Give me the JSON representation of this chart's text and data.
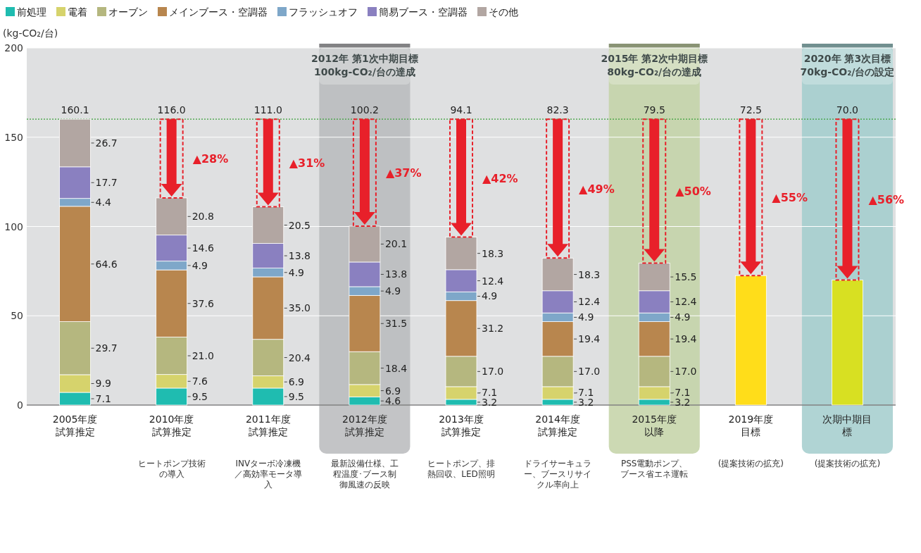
{
  "chart_data": {
    "type": "bar",
    "stacked": true,
    "ylabel": "(kg-CO₂/台)",
    "categories": [
      "2005年度試算推定",
      "2010年度試算推定",
      "2011年度試算推定",
      "2012年度試算推定",
      "2013年度試算推定",
      "2014年度試算推定",
      "2015年度以降",
      "2019年度目標",
      "次期中期目標"
    ],
    "series": [
      {
        "name": "前処理",
        "color": "#1fbcb0",
        "values": [
          7.1,
          9.5,
          9.5,
          4.6,
          3.2,
          3.2,
          3.2,
          null,
          null
        ]
      },
      {
        "name": "電着",
        "color": "#d6d36c",
        "values": [
          9.9,
          7.6,
          6.9,
          6.9,
          7.1,
          7.1,
          7.1,
          null,
          null
        ]
      },
      {
        "name": "オーブン",
        "color": "#b5b77f",
        "values": [
          29.7,
          21.0,
          20.4,
          18.4,
          17.0,
          17.0,
          17.0,
          null,
          null
        ],
        "value_labels": [
          "29.7",
          "21.0",
          "20.4",
          "18.4",
          "17.0",
          "17.0",
          "17.0",
          null,
          null
        ]
      },
      {
        "name": "メインブース・空調器",
        "color": "#b8864e",
        "values": [
          64.6,
          37.6,
          35.0,
          31.5,
          31.2,
          19.4,
          19.4,
          null,
          null
        ],
        "value_labels": [
          "64.6",
          "37.6",
          "35.0",
          "31.5",
          "31.2",
          "19.4",
          "19.4",
          null,
          null
        ]
      },
      {
        "name": "フラッシュオフ",
        "color": "#7ea7c9",
        "values": [
          4.4,
          4.9,
          4.9,
          4.9,
          4.9,
          4.9,
          4.9,
          null,
          null
        ]
      },
      {
        "name": "簡易ブース・空調器",
        "color": "#8a80c0",
        "values": [
          17.7,
          14.6,
          13.8,
          13.8,
          12.4,
          12.4,
          12.4,
          null,
          null
        ]
      },
      {
        "name": "その他",
        "color": "#b2a6a2",
        "values": [
          26.7,
          20.8,
          20.5,
          20.1,
          18.3,
          18.3,
          15.5,
          null,
          null
        ]
      },
      {
        "colors": [
          null,
          null,
          null,
          null,
          null,
          null,
          null,
          "#ffdd1a",
          "#d8e022"
        ],
        "values": [
          null,
          null,
          null,
          null,
          null,
          null,
          null,
          72.5,
          70.0
        ],
        "value_labels": [
          null,
          null,
          null,
          null,
          null,
          null,
          null,
          null,
          null
        ]
      }
    ],
    "data_labels": true,
    "ylim": [
      0,
      200
    ],
    "yticks": [
      0,
      50,
      100,
      150,
      200
    ],
    "grid": "y",
    "legend": "top left",
    "ref_lines": [
      {
        "axis": "y",
        "value": 160.1,
        "color": "#3aa03a",
        "line_style": "dotted"
      }
    ],
    "bands": [
      {
        "axis": "x",
        "from": "2012年度試算推定",
        "to": "2012年度試算推定",
        "label": "2012年 第1次中期目標\n100kg-CO₂/台の達成",
        "color": "#b9babc"
      },
      {
        "axis": "x",
        "from": "2015年度以降",
        "to": "2015年度以降",
        "label": "2015年 第2次中期目標\n80kg-CO₂/台の達成",
        "color": "#c3d2a6"
      },
      {
        "axis": "x",
        "from": "次期中期目標",
        "to": "次期中期目標",
        "label": "2020年 第3次目標\n70kg-CO₂/台の設定",
        "color": "#a2cccc"
      }
    ],
    "annotations": [
      "160.1",
      "116.0",
      "111.0",
      "100.2",
      "94.1",
      "82.3",
      "79.5",
      "72.5",
      "70.0",
      "▲28%",
      "▲31%",
      "▲37%",
      "▲42%",
      "▲49%",
      "▲50%",
      "▲55%",
      "▲56%",
      "ヒートポンプ技術の導入",
      "INVターボ冷凍機／高効率モータ導入",
      "最新設備仕様、工程温度･ブース制御風速の反映",
      "ヒートポンプ、排熱回収、LED照明",
      "ドライサーキュラー、ブースリサイクル率向上",
      "PSS電動ポンプ、ブース省エネ運転",
      "(提案技術の拡充)",
      "(提案技術の拡充)"
    ]
  }
}
